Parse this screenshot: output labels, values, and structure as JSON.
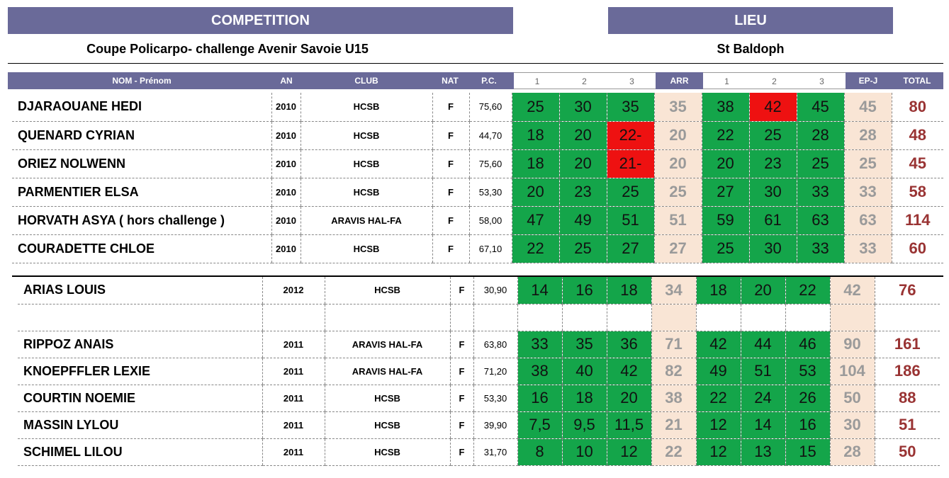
{
  "competition": {
    "label": "COMPETITION",
    "value": "Coupe Policarpo- challenge Avenir Savoie U15"
  },
  "lieu": {
    "label": "LIEU",
    "value": "St Baldoph"
  },
  "colors": {
    "header": "#6a6a99",
    "green": "#14a54a",
    "red": "#ee1111",
    "peach": "#f9e5d5",
    "total": "#993333"
  },
  "headers": {
    "nom": "NOM - Prénom",
    "an": "AN",
    "club": "CLUB",
    "nat": "NAT",
    "pc": "P.C.",
    "r1": "1",
    "r2": "2",
    "r3": "3",
    "arr": "ARR",
    "e1": "1",
    "e2": "2",
    "e3": "3",
    "epj": "EP-J",
    "total": "TOTAL"
  },
  "group1": [
    {
      "name": "DJARAOUANE HEDI",
      "an": "2010",
      "club": "HCSB",
      "nat": "F",
      "pc": "75,60",
      "s": [
        "25",
        "30",
        "35"
      ],
      "arr": "35",
      "e": [
        "38",
        "42",
        "45"
      ],
      "epj": "45",
      "total": "80"
    },
    {
      "name": "QUENARD CYRIAN",
      "an": "2010",
      "club": "HCSB",
      "nat": "F",
      "pc": "44,70",
      "s": [
        "18",
        "20",
        "22-"
      ],
      "arr": "20",
      "e": [
        "22",
        "25",
        "28"
      ],
      "epj": "28",
      "total": "48"
    },
    {
      "name": "ORIEZ NOLWENN",
      "an": "2010",
      "club": "HCSB",
      "nat": "F",
      "pc": "75,60",
      "s": [
        "18",
        "20",
        "21-"
      ],
      "arr": "20",
      "e": [
        "20",
        "23",
        "25"
      ],
      "epj": "25",
      "total": "45"
    },
    {
      "name": "PARMENTIER ELSA",
      "an": "2010",
      "club": "HCSB",
      "nat": "F",
      "pc": "53,30",
      "s": [
        "20",
        "23",
        "25"
      ],
      "arr": "25",
      "e": [
        "27",
        "30",
        "33"
      ],
      "epj": "33",
      "total": "58"
    },
    {
      "name": "HORVATH ASYA ( hors challenge )",
      "an": "2010",
      "club": "ARAVIS HAL-FA",
      "nat": "F",
      "pc": "58,00",
      "s": [
        "47",
        "49",
        "51"
      ],
      "arr": "51",
      "e": [
        "59",
        "61",
        "63"
      ],
      "epj": "63",
      "total": "114"
    },
    {
      "name": "COURADETTE CHLOE",
      "an": "2010",
      "club": "HCSB",
      "nat": "F",
      "pc": "67,10",
      "s": [
        "22",
        "25",
        "27"
      ],
      "arr": "27",
      "e": [
        "25",
        "30",
        "33"
      ],
      "epj": "33",
      "total": "60"
    }
  ],
  "group2_first": {
    "name": "ARIAS LOUIS",
    "an": "2012",
    "club": "HCSB",
    "nat": "F",
    "pc": "30,90",
    "s": [
      "14",
      "16",
      "18"
    ],
    "arr": "34",
    "e": [
      "18",
      "20",
      "22"
    ],
    "epj": "42",
    "total": "76"
  },
  "group2": [
    {
      "name": "RIPPOZ ANAIS",
      "an": "2011",
      "club": "ARAVIS HAL-FA",
      "nat": "F",
      "pc": "63,80",
      "s": [
        "33",
        "35",
        "36"
      ],
      "arr": "71",
      "e": [
        "42",
        "44",
        "46"
      ],
      "epj": "90",
      "total": "161"
    },
    {
      "name": "KNOEPFFLER LEXIE",
      "an": "2011",
      "club": "ARAVIS HAL-FA",
      "nat": "F",
      "pc": "71,20",
      "s": [
        "38",
        "40",
        "42"
      ],
      "arr": "82",
      "e": [
        "49",
        "51",
        "53"
      ],
      "epj": "104",
      "total": "186"
    },
    {
      "name": "COURTIN NOEMIE",
      "an": "2011",
      "club": "HCSB",
      "nat": "F",
      "pc": "53,30",
      "s": [
        "16",
        "18",
        "20"
      ],
      "arr": "38",
      "e": [
        "22",
        "24",
        "26"
      ],
      "epj": "50",
      "total": "88"
    },
    {
      "name": "MASSIN LYLOU",
      "an": "2011",
      "club": "HCSB",
      "nat": "F",
      "pc": "39,90",
      "s": [
        "7,5",
        "9,5",
        "11,5"
      ],
      "arr": "21",
      "e": [
        "12",
        "14",
        "16"
      ],
      "epj": "30",
      "total": "51"
    },
    {
      "name": "SCHIMEL LILOU",
      "an": "2011",
      "club": "HCSB",
      "nat": "F",
      "pc": "31,70",
      "s": [
        "8",
        "10",
        "12"
      ],
      "arr": "22",
      "e": [
        "12",
        "13",
        "15"
      ],
      "epj": "28",
      "total": "50"
    }
  ]
}
